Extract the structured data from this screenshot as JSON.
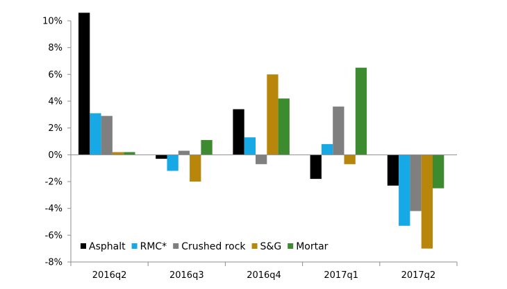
{
  "chart_data": {
    "type": "bar",
    "title": "",
    "xlabel": "",
    "ylabel": "",
    "categories": [
      "2016q2",
      "2016q3",
      "2016q4",
      "2017q1",
      "2017q2"
    ],
    "ylim": [
      -8,
      10
    ],
    "yticks": [
      -8,
      -6,
      -4,
      -2,
      0,
      2,
      4,
      6,
      8,
      10
    ],
    "tick_suffix": "%",
    "grid": false,
    "legend_position": "bottom-left",
    "series": [
      {
        "name": "Asphalt",
        "color": "#000000",
        "values": [
          10.6,
          -0.3,
          3.4,
          -1.8,
          -2.3
        ]
      },
      {
        "name": "RMC*",
        "color": "#17a9e6",
        "values": [
          3.1,
          -1.2,
          1.3,
          0.8,
          -5.3
        ]
      },
      {
        "name": "Crushed rock",
        "color": "#7f7f7f",
        "values": [
          2.9,
          0.3,
          -0.7,
          3.6,
          -4.2
        ]
      },
      {
        "name": "S&G",
        "color": "#b8860b",
        "values": [
          0.2,
          -2.0,
          6.0,
          -0.7,
          -7.0
        ]
      },
      {
        "name": "Mortar",
        "color": "#3d8b2f",
        "values": [
          0.2,
          1.1,
          4.2,
          6.5,
          -2.5
        ]
      }
    ]
  }
}
